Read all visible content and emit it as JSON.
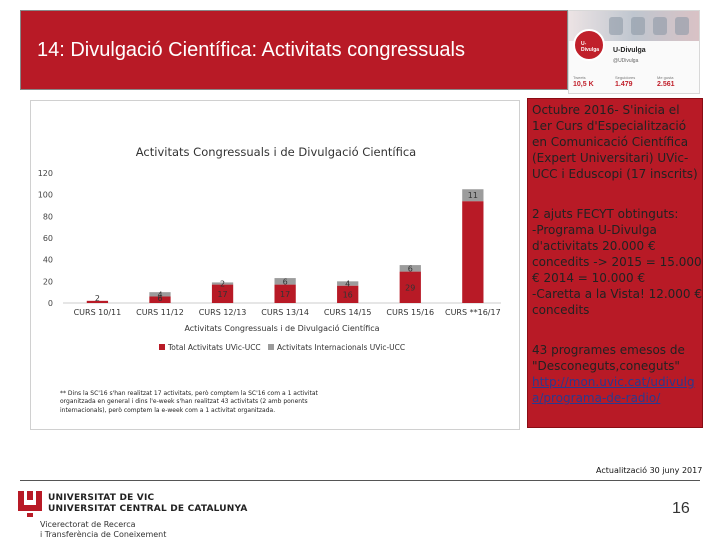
{
  "slide": {
    "title": "14: Divulgació Científica: Activitats congressuals",
    "updated": "Actualització 30 juny 2017",
    "page_number": "16"
  },
  "thumbnail": {
    "logo_text": "U-Divulga",
    "name": "U-Divulga",
    "handle": "@UDivulga",
    "stats": [
      {
        "label": "Tweets",
        "value": "10,5 K"
      },
      {
        "label": "Seguidores",
        "value": "1.479"
      },
      {
        "label": "Me gusta",
        "value": "2.561"
      }
    ]
  },
  "chart_data": {
    "type": "bar",
    "title": "Activitats Congressuals i de Divulgació Científica",
    "xlabel": "Activitats Congressuals i de Divulgació Científica",
    "categories": [
      "CURS 10/11",
      "CURS 11/12",
      "CURS 12/13",
      "CURS 13/14",
      "CURS 14/15",
      "CURS 15/16",
      "CURS **16/17"
    ],
    "series": [
      {
        "name": "Total Activitats UVic-UCC",
        "values": [
          2,
          6,
          17,
          17,
          16,
          29,
          94
        ],
        "labels": [
          "2",
          "6",
          "17",
          "17",
          "16",
          "29",
          ""
        ],
        "color": "#b81a26"
      },
      {
        "name": "Activitats Internacionals UVic-UCC",
        "values": [
          0,
          4,
          2,
          6,
          4,
          6,
          11
        ],
        "labels": [
          "",
          "4",
          "2",
          "6",
          "4",
          "6",
          "11"
        ],
        "color": "#9c9c9c"
      }
    ],
    "ylim": [
      0,
      120
    ],
    "yticks": [
      0,
      20,
      40,
      60,
      80,
      100,
      120
    ],
    "grid": false,
    "legend": "bottom"
  },
  "chart_note": "** Dins la SC'16 s'han realitzat 17 activitats, però comptem la SC'16 com a 1 activitat organitzada en general i dins l'e-week s'han realitzat 43 activitats (2 amb ponents internacionals), però comptem la e-week com a 1 activitat organitzada.",
  "side": {
    "block1": "Octubre 2016- S'inicia el 1er Curs d'Especialització en Comunicació Científica (Expert Universitari) UVic-UCC i Eduscopi (17 inscrits)",
    "block2_line1": "2 ajuts FECYT obtinguts:",
    "block2_line2": "-Programa U-Divulga d'activitats 20.000 € concedits -> 2015 = 15.000 € 2014 = 10.000 €",
    "block2_line3": "-Caretta a la Vista! 12.000 € concedits",
    "block3_text": "43 programes emesos de \"Desconeguts,coneguts\"",
    "block3_link": "http://mon.uvic.cat/udivulga/programa-de-radio/"
  },
  "footer": {
    "university_line1": "UNIVERSITAT DE VIC",
    "university_line2": "UNIVERSITAT CENTRAL DE CATALUNYA",
    "vice_line1": "Vicerectorat de Recerca",
    "vice_line2": "i Transferència de Coneixement"
  },
  "colors": {
    "brand_red": "#b81a26",
    "secondary_gray": "#9c9c9c",
    "link_blue": "#2a3a8f"
  }
}
